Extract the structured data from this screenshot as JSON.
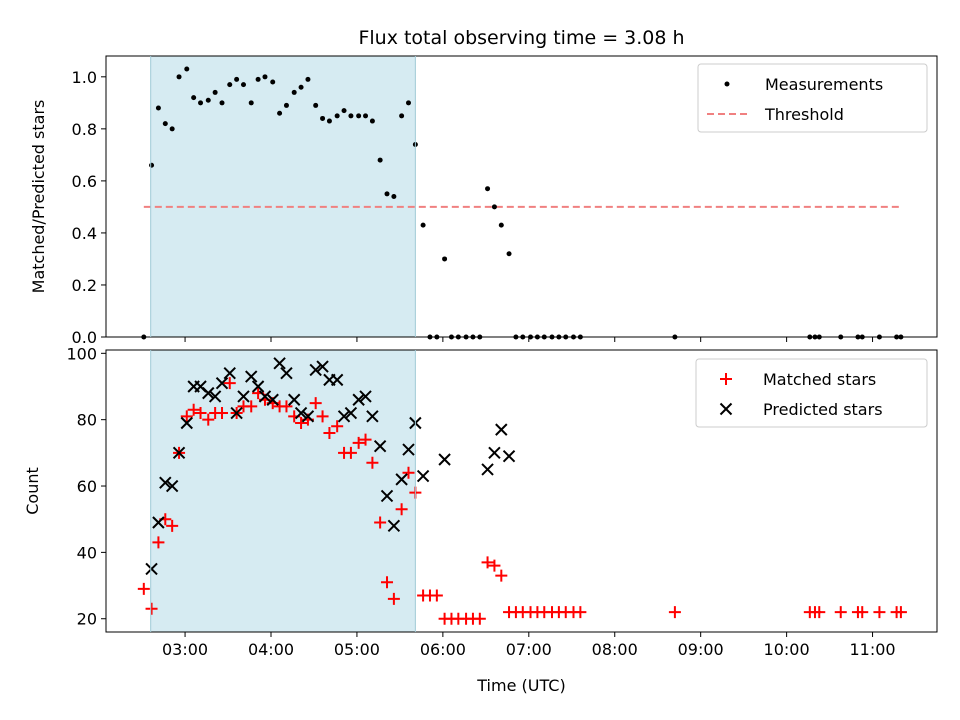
{
  "chart_data": [
    {
      "type": "scatter",
      "title": "Flux total observing time = 3.08 h",
      "xlabel": "",
      "ylabel": "Matched/Predicted stars",
      "xlim": [
        2.08,
        11.75
      ],
      "ylim": [
        0.0,
        1.08
      ],
      "yticks": [
        0.0,
        0.2,
        0.4,
        0.6,
        0.8,
        1.0
      ],
      "ytick_labels": [
        "0.0",
        "0.2",
        "0.4",
        "0.6",
        "0.8",
        "1.0"
      ],
      "legend_position": "top-right",
      "shaded_span": [
        2.6,
        5.68
      ],
      "shaded_color": "#add8e6",
      "series": [
        {
          "name": "Measurements",
          "color": "#000000",
          "marker": "dot",
          "x": [
            2.52,
            2.61,
            2.69,
            2.77,
            2.85,
            2.93,
            3.02,
            3.1,
            3.18,
            3.27,
            3.35,
            3.43,
            3.52,
            3.6,
            3.68,
            3.77,
            3.85,
            3.93,
            4.02,
            4.1,
            4.18,
            4.27,
            4.35,
            4.43,
            4.52,
            4.6,
            4.68,
            4.77,
            4.85,
            4.93,
            5.02,
            5.1,
            5.18,
            5.27,
            5.35,
            5.43,
            5.52,
            5.6,
            5.68,
            5.77,
            5.85,
            5.93,
            6.02,
            6.1,
            6.18,
            6.27,
            6.35,
            6.43,
            6.52,
            6.6,
            6.68,
            6.77,
            6.85,
            6.93,
            7.02,
            7.1,
            7.18,
            7.27,
            7.35,
            7.43,
            7.52,
            7.6,
            8.7,
            10.27,
            10.33,
            10.38,
            10.63,
            10.83,
            10.88,
            11.08,
            11.28,
            11.33
          ],
          "y": [
            0.0,
            0.66,
            0.88,
            0.82,
            0.8,
            1.0,
            1.03,
            0.92,
            0.9,
            0.91,
            0.94,
            0.9,
            0.97,
            0.99,
            0.97,
            0.9,
            0.99,
            1.0,
            0.98,
            0.86,
            0.89,
            0.94,
            0.96,
            0.99,
            0.89,
            0.84,
            0.83,
            0.85,
            0.87,
            0.85,
            0.85,
            0.85,
            0.83,
            0.68,
            0.55,
            0.54,
            0.85,
            0.9,
            0.74,
            0.43,
            0.0,
            0.0,
            0.3,
            0.0,
            0.0,
            0.0,
            0.0,
            0.0,
            0.57,
            0.5,
            0.43,
            0.32,
            0.0,
            0.0,
            0.0,
            0.0,
            0.0,
            0.0,
            0.0,
            0.0,
            0.0,
            0.0,
            0.0,
            0.0,
            0.0,
            0.0,
            0.0,
            0.0,
            0.0,
            0.0,
            0.0,
            0.0
          ]
        },
        {
          "name": "Threshold",
          "color": "#f08080",
          "style": "dashed",
          "x": [
            2.52,
            11.33
          ],
          "y": [
            0.5,
            0.5
          ]
        }
      ]
    },
    {
      "type": "scatter",
      "title": "",
      "xlabel": "Time (UTC)",
      "ylabel": "Count",
      "xlim": [
        2.08,
        11.75
      ],
      "ylim": [
        16,
        101
      ],
      "yticks": [
        20,
        40,
        60,
        80,
        100
      ],
      "ytick_labels": [
        "20",
        "40",
        "60",
        "80",
        "100"
      ],
      "xticks": [
        3,
        4,
        5,
        6,
        7,
        8,
        9,
        10,
        11
      ],
      "xtick_labels": [
        "03:00",
        "04:00",
        "05:00",
        "06:00",
        "07:00",
        "08:00",
        "09:00",
        "10:00",
        "11:00"
      ],
      "legend_position": "top-right",
      "shaded_span": [
        2.6,
        5.68
      ],
      "shaded_color": "#add8e6",
      "series": [
        {
          "name": "Matched stars",
          "color": "#ff0000",
          "marker": "plus",
          "x": [
            2.52,
            2.61,
            2.69,
            2.77,
            2.85,
            2.93,
            3.02,
            3.1,
            3.18,
            3.27,
            3.35,
            3.43,
            3.52,
            3.6,
            3.68,
            3.77,
            3.85,
            3.93,
            4.02,
            4.1,
            4.18,
            4.27,
            4.35,
            4.43,
            4.52,
            4.6,
            4.68,
            4.77,
            4.85,
            4.93,
            5.02,
            5.1,
            5.18,
            5.27,
            5.35,
            5.43,
            5.52,
            5.6,
            5.68,
            5.77,
            5.85,
            5.93,
            6.02,
            6.1,
            6.18,
            6.27,
            6.35,
            6.43,
            6.52,
            6.6,
            6.68,
            6.77,
            6.85,
            6.93,
            7.02,
            7.1,
            7.18,
            7.27,
            7.35,
            7.43,
            7.52,
            7.6,
            8.7,
            10.27,
            10.33,
            10.38,
            10.63,
            10.83,
            10.88,
            11.08,
            11.28,
            11.33
          ],
          "y": [
            29,
            23,
            43,
            50,
            48,
            70,
            81,
            83,
            82,
            80,
            82,
            82,
            91,
            82,
            84,
            84,
            88,
            86,
            85,
            84,
            84,
            81,
            79,
            80,
            85,
            81,
            76,
            78,
            70,
            70,
            73,
            74,
            67,
            49,
            31,
            26,
            53,
            64,
            58,
            27,
            27,
            27,
            20,
            20,
            20,
            20,
            20,
            20,
            37,
            36,
            33,
            22,
            22,
            22,
            22,
            22,
            22,
            22,
            22,
            22,
            22,
            22,
            22,
            22,
            22,
            22,
            22,
            22,
            22,
            22,
            22,
            22
          ]
        },
        {
          "name": "Predicted stars",
          "color": "#000000",
          "marker": "x",
          "x": [
            2.61,
            2.69,
            2.77,
            2.85,
            2.93,
            3.02,
            3.1,
            3.18,
            3.27,
            3.35,
            3.43,
            3.52,
            3.6,
            3.68,
            3.77,
            3.85,
            3.93,
            4.02,
            4.1,
            4.18,
            4.27,
            4.35,
            4.43,
            4.52,
            4.6,
            4.68,
            4.77,
            4.85,
            4.93,
            5.02,
            5.1,
            5.18,
            5.27,
            5.35,
            5.43,
            5.52,
            5.6,
            5.68,
            5.77,
            6.02,
            6.52,
            6.6,
            6.68,
            6.77
          ],
          "y": [
            35,
            49,
            61,
            60,
            70,
            79,
            90,
            90,
            88,
            87,
            91,
            94,
            82,
            87,
            93,
            90,
            87,
            86,
            97,
            94,
            86,
            82,
            81,
            95,
            96,
            92,
            92,
            81,
            82,
            86,
            87,
            81,
            72,
            57,
            48,
            62,
            71,
            79,
            63,
            68,
            65,
            70,
            77,
            69
          ]
        }
      ]
    }
  ]
}
